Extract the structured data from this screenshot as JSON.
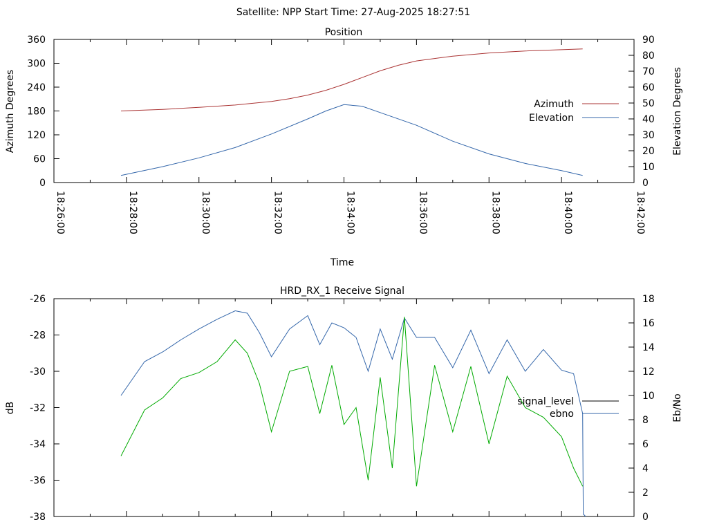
{
  "header": {
    "title": "Satellite: NPP    Start Time: 27-Aug-2025 18:27:51"
  },
  "chart_data": [
    {
      "type": "line",
      "title": "Position",
      "xlabel": "Time",
      "ylabel": "Azimuth Degrees",
      "y2label": "Elevation Degrees",
      "xticks": [
        "18:26:00",
        "18:28:00",
        "18:30:00",
        "18:32:00",
        "18:34:00",
        "18:36:00",
        "18:38:00",
        "18:40:00",
        "18:42:00"
      ],
      "xlim": [
        "18:26:00",
        "18:42:00"
      ],
      "ylim": [
        0,
        360
      ],
      "yticks": [
        0,
        60,
        120,
        180,
        240,
        300,
        360
      ],
      "y2lim": [
        0,
        90
      ],
      "y2ticks": [
        0,
        10,
        20,
        30,
        40,
        50,
        60,
        70,
        80,
        90
      ],
      "legend_position": "right",
      "series": [
        {
          "name": "Azimuth",
          "axis": "y",
          "color": "#aa3333",
          "x": [
            "18:27:51",
            "18:29:00",
            "18:30:00",
            "18:31:00",
            "18:32:00",
            "18:32:30",
            "18:33:00",
            "18:33:30",
            "18:34:00",
            "18:34:30",
            "18:35:00",
            "18:35:30",
            "18:36:00",
            "18:37:00",
            "18:38:00",
            "18:39:00",
            "18:40:00",
            "18:40:35"
          ],
          "values": [
            180,
            184,
            189,
            195,
            204,
            211,
            220,
            232,
            247,
            264,
            281,
            295,
            306,
            318,
            326,
            331,
            334,
            336
          ]
        },
        {
          "name": "Elevation",
          "axis": "y2",
          "color": "#3366aa",
          "x": [
            "18:27:51",
            "18:29:00",
            "18:30:00",
            "18:31:00",
            "18:32:00",
            "18:33:00",
            "18:33:30",
            "18:34:00",
            "18:34:30",
            "18:35:00",
            "18:36:00",
            "18:37:00",
            "18:38:00",
            "18:39:00",
            "18:40:00",
            "18:40:35"
          ],
          "values": [
            4.5,
            10,
            15.5,
            22,
            30.5,
            40,
            45,
            49,
            48,
            44,
            36,
            26,
            18,
            12,
            7.5,
            4.5
          ]
        }
      ]
    },
    {
      "type": "line",
      "title": "HRD_RX_1 Receive Signal",
      "ylabel": "dB",
      "y2label": "Eb/No",
      "xlim": [
        "18:26:00",
        "18:42:00"
      ],
      "ylim": [
        -38,
        -26
      ],
      "yticks": [
        -38,
        -36,
        -34,
        -32,
        -30,
        -28,
        -26
      ],
      "y2lim": [
        0,
        18
      ],
      "y2ticks": [
        0,
        2,
        4,
        6,
        8,
        10,
        12,
        14,
        16,
        18
      ],
      "legend_position": "right",
      "series": [
        {
          "name": "signal_level",
          "axis": "y",
          "color": "#000000",
          "x": [],
          "values": []
        },
        {
          "name": "ebno",
          "axis": "y2",
          "color": "#3366aa",
          "x": [
            "18:27:51",
            "18:28:30",
            "18:29:00",
            "18:29:30",
            "18:30:00",
            "18:30:30",
            "18:31:00",
            "18:31:20",
            "18:31:40",
            "18:32:00",
            "18:32:30",
            "18:33:00",
            "18:33:20",
            "18:33:40",
            "18:34:00",
            "18:34:20",
            "18:34:40",
            "18:35:00",
            "18:35:20",
            "18:35:40",
            "18:36:00",
            "18:36:30",
            "18:37:00",
            "18:37:30",
            "18:38:00",
            "18:38:30",
            "18:39:00",
            "18:39:30",
            "18:40:00",
            "18:40:20",
            "18:40:35",
            "18:40:36",
            "18:40:40"
          ],
          "values": [
            10,
            12.8,
            13.6,
            14.6,
            15.5,
            16.3,
            17,
            16.8,
            15.2,
            13.2,
            15.5,
            16.6,
            14.2,
            16,
            15.6,
            14.8,
            12,
            15.5,
            13,
            16.4,
            14.8,
            14.8,
            12.3,
            15.4,
            11.8,
            14.6,
            12,
            13.8,
            12.1,
            11.8,
            8.5,
            0.2,
            0
          ]
        },
        {
          "name": "",
          "axis": "y2",
          "color": "#00aa00",
          "x": [
            "18:27:51",
            "18:28:30",
            "18:29:00",
            "18:29:30",
            "18:30:00",
            "18:30:30",
            "18:31:00",
            "18:31:20",
            "18:31:40",
            "18:32:00",
            "18:32:30",
            "18:33:00",
            "18:33:20",
            "18:33:40",
            "18:34:00",
            "18:34:20",
            "18:34:40",
            "18:35:00",
            "18:35:20",
            "18:35:40",
            "18:36:00",
            "18:36:30",
            "18:37:00",
            "18:37:30",
            "18:38:00",
            "18:38:30",
            "18:39:00",
            "18:39:30",
            "18:40:00",
            "18:40:20",
            "18:40:35"
          ],
          "values": [
            5,
            8.8,
            9.8,
            11.4,
            11.9,
            12.8,
            14.6,
            13.5,
            11,
            7,
            12,
            12.4,
            8.5,
            12.5,
            7.6,
            9,
            3,
            11.5,
            4,
            16.5,
            2.5,
            12.5,
            7,
            12.4,
            6,
            11.6,
            9,
            8.2,
            6.6,
            4,
            2.5
          ]
        }
      ]
    }
  ]
}
